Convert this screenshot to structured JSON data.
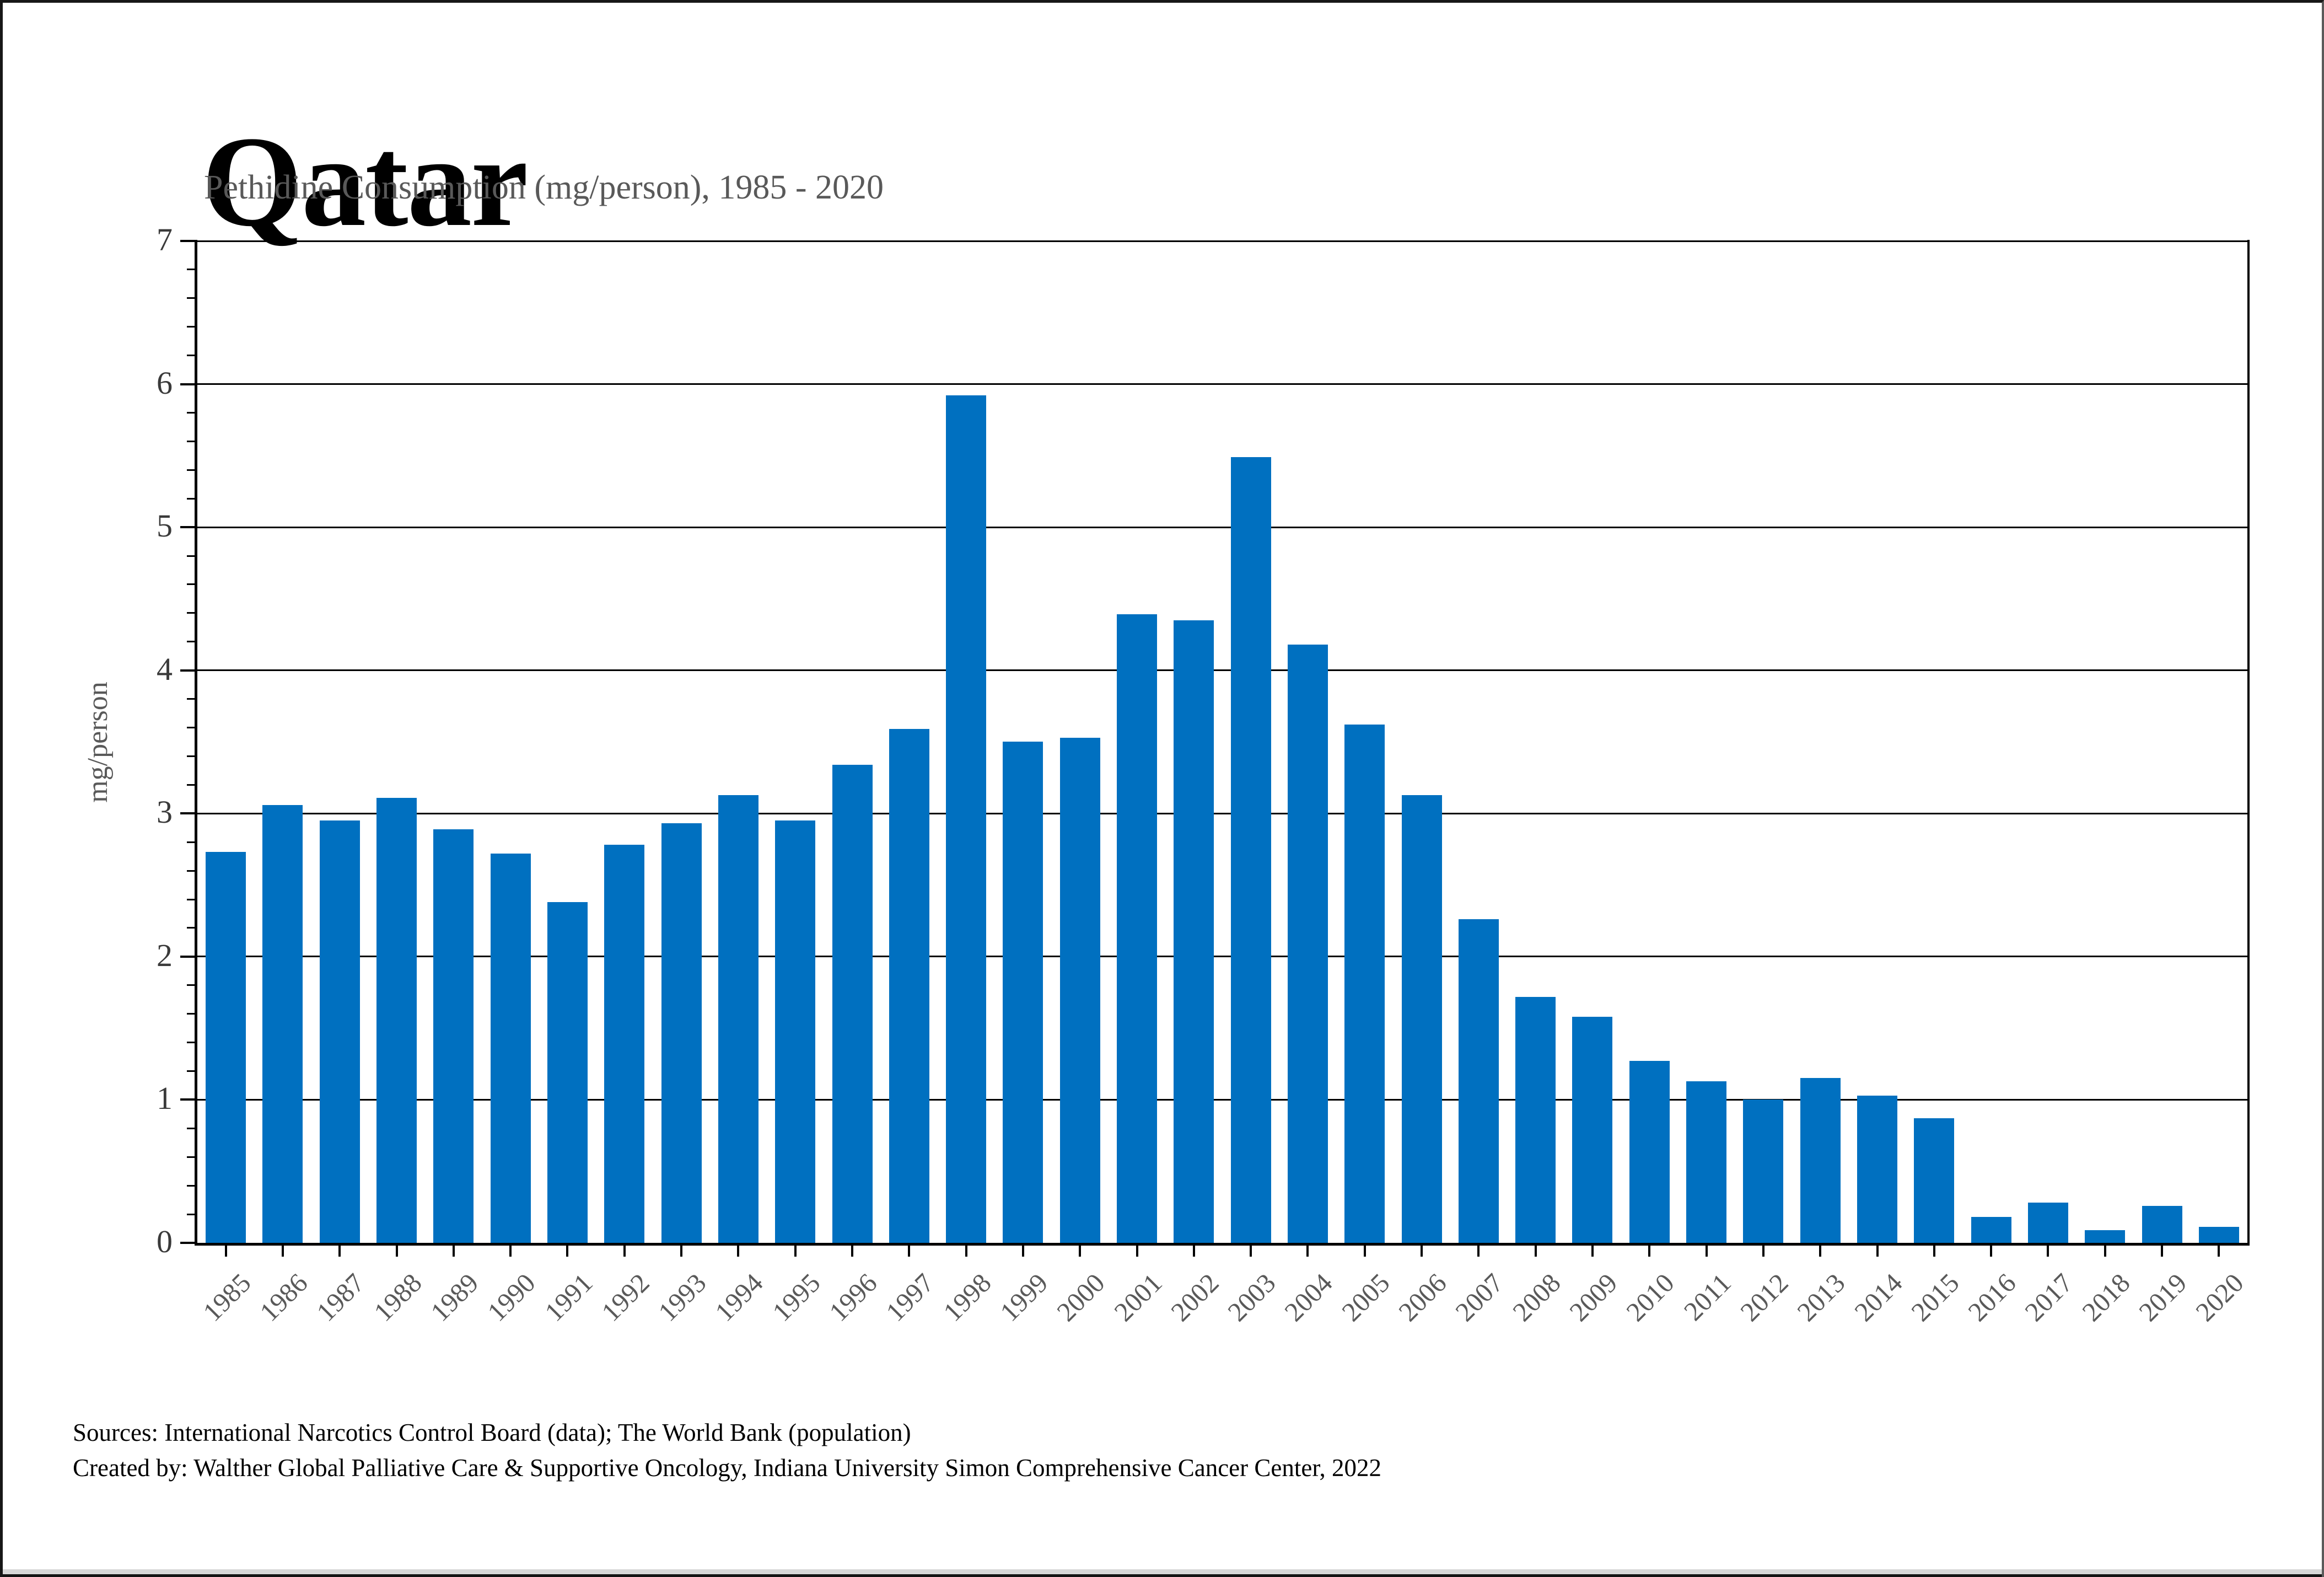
{
  "header": {
    "title": "Qatar",
    "subtitle": "Pethidine Consumption (mg/person), 1985 - 2020"
  },
  "chart_data": {
    "type": "bar",
    "title": "Qatar",
    "subtitle": "Pethidine Consumption (mg/person), 1985 - 2020",
    "categories": [
      "1985",
      "1986",
      "1987",
      "1988",
      "1989",
      "1990",
      "1991",
      "1992",
      "1993",
      "1994",
      "1995",
      "1996",
      "1997",
      "1998",
      "1999",
      "2000",
      "2001",
      "2002",
      "2003",
      "2004",
      "2005",
      "2006",
      "2007",
      "2008",
      "2009",
      "2010",
      "2011",
      "2012",
      "2013",
      "2014",
      "2015",
      "2016",
      "2017",
      "2018",
      "2019",
      "2020"
    ],
    "values": [
      2.73,
      3.06,
      2.95,
      3.11,
      2.89,
      2.72,
      2.38,
      2.78,
      2.93,
      3.13,
      2.95,
      3.34,
      3.59,
      5.92,
      3.5,
      3.53,
      4.39,
      4.35,
      5.49,
      4.18,
      3.62,
      3.13,
      2.26,
      1.72,
      1.58,
      1.27,
      1.13,
      1.0,
      1.15,
      1.03,
      0.87,
      0.18,
      0.28,
      0.09,
      0.26,
      0.11
    ],
    "xlabel": "",
    "ylabel": "mg/person",
    "ylim": [
      0,
      7
    ],
    "ytick_step": 1,
    "y_minor_step": 0.2,
    "yticks": [
      0,
      1,
      2,
      3,
      4,
      5,
      6,
      7
    ],
    "grid": "horizontal",
    "legend": "none",
    "bar_color": "#0070C0"
  },
  "footer": {
    "line1": "Sources: International Narcotics Control Board (data); The World Bank (population)",
    "line2": "Created by: Walther Global Palliative Care & Supportive Oncology, Indiana University Simon Comprehensive Cancer Center, 2022"
  },
  "colors": {
    "bar": "#0070C0",
    "axis": "#000000",
    "subtitle_text": "#595959",
    "y_tick_label": "#3a3a3a",
    "x_tick_label": "#595959"
  }
}
